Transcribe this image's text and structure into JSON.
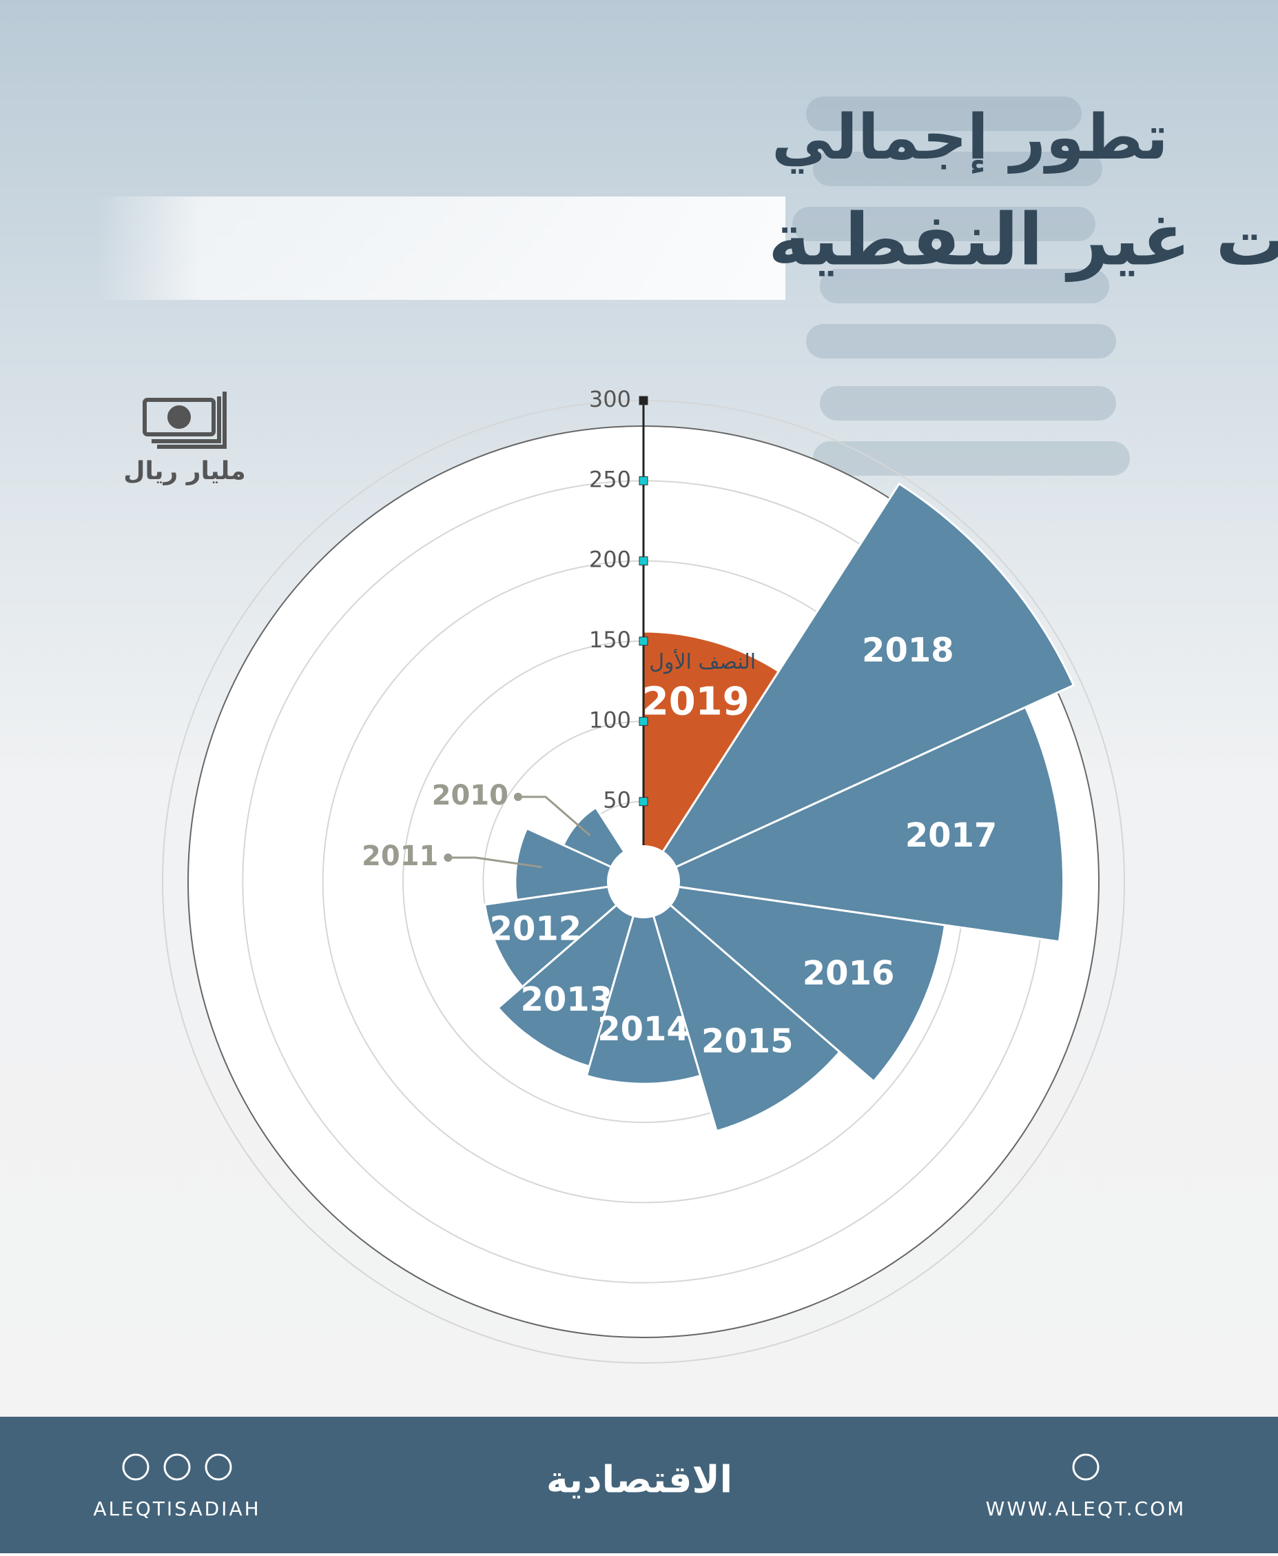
{
  "chart_data": {
    "type": "polar-bar",
    "title_line1": "تطور إجمالي",
    "title_line2": "الإيرادات غير النفطية",
    "unit": "مليار ريال",
    "annotation": "النصف الأول",
    "categories": [
      "2010",
      "2011",
      "2012",
      "2013",
      "2014",
      "2015",
      "2016",
      "2017",
      "2018",
      "2019"
    ],
    "values": [
      55,
      80,
      100,
      120,
      126,
      162,
      190,
      262,
      295,
      156
    ],
    "colors": [
      "#5b89a6",
      "#5b89a6",
      "#5b89a6",
      "#5b89a6",
      "#5b89a6",
      "#5b89a6",
      "#5b89a6",
      "#5b89a6",
      "#5b89a6",
      "#d05a27"
    ],
    "ylim": [
      0,
      300
    ],
    "yticks": [
      50,
      100,
      150,
      200,
      250,
      300
    ],
    "grid": true
  },
  "footer": {
    "social": "ALEQTISADIAH",
    "logo": "الاقتصادية",
    "website": "WWW.ALEQT.COM"
  }
}
